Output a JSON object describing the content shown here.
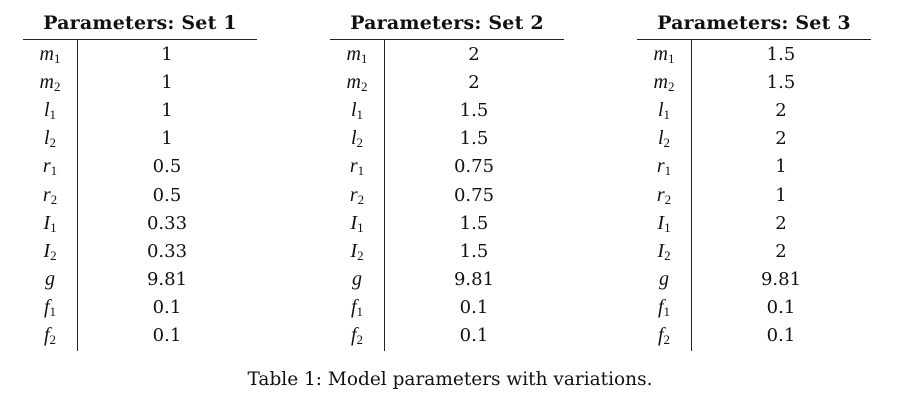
{
  "tables": [
    {
      "title": "Parameters: Set 1",
      "rows": [
        {
          "sym": "m",
          "sub": "1",
          "value": "1"
        },
        {
          "sym": "m",
          "sub": "2",
          "value": "1"
        },
        {
          "sym": "l",
          "sub": "1",
          "value": "1"
        },
        {
          "sym": "l",
          "sub": "2",
          "value": "1"
        },
        {
          "sym": "r",
          "sub": "1",
          "value": "0.5"
        },
        {
          "sym": "r",
          "sub": "2",
          "value": "0.5"
        },
        {
          "sym": "I",
          "sub": "1",
          "value": "0.33"
        },
        {
          "sym": "I",
          "sub": "2",
          "value": "0.33"
        },
        {
          "sym": "g",
          "sub": "",
          "value": "9.81"
        },
        {
          "sym": "f",
          "sub": "1",
          "value": "0.1"
        },
        {
          "sym": "f",
          "sub": "2",
          "value": "0.1"
        }
      ]
    },
    {
      "title": "Parameters: Set 2",
      "rows": [
        {
          "sym": "m",
          "sub": "1",
          "value": "2"
        },
        {
          "sym": "m",
          "sub": "2",
          "value": "2"
        },
        {
          "sym": "l",
          "sub": "1",
          "value": "1.5"
        },
        {
          "sym": "l",
          "sub": "2",
          "value": "1.5"
        },
        {
          "sym": "r",
          "sub": "1",
          "value": "0.75"
        },
        {
          "sym": "r",
          "sub": "2",
          "value": "0.75"
        },
        {
          "sym": "I",
          "sub": "1",
          "value": "1.5"
        },
        {
          "sym": "I",
          "sub": "2",
          "value": "1.5"
        },
        {
          "sym": "g",
          "sub": "",
          "value": "9.81"
        },
        {
          "sym": "f",
          "sub": "1",
          "value": "0.1"
        },
        {
          "sym": "f",
          "sub": "2",
          "value": "0.1"
        }
      ]
    },
    {
      "title": "Parameters: Set 3",
      "rows": [
        {
          "sym": "m",
          "sub": "1",
          "value": "1.5"
        },
        {
          "sym": "m",
          "sub": "2",
          "value": "1.5"
        },
        {
          "sym": "l",
          "sub": "1",
          "value": "2"
        },
        {
          "sym": "l",
          "sub": "2",
          "value": "2"
        },
        {
          "sym": "r",
          "sub": "1",
          "value": "1"
        },
        {
          "sym": "r",
          "sub": "2",
          "value": "1"
        },
        {
          "sym": "I",
          "sub": "1",
          "value": "2"
        },
        {
          "sym": "I",
          "sub": "2",
          "value": "2"
        },
        {
          "sym": "g",
          "sub": "",
          "value": "9.81"
        },
        {
          "sym": "f",
          "sub": "1",
          "value": "0.1"
        },
        {
          "sym": "f",
          "sub": "2",
          "value": "0.1"
        }
      ]
    }
  ],
  "caption": "Table 1: Model parameters with variations."
}
